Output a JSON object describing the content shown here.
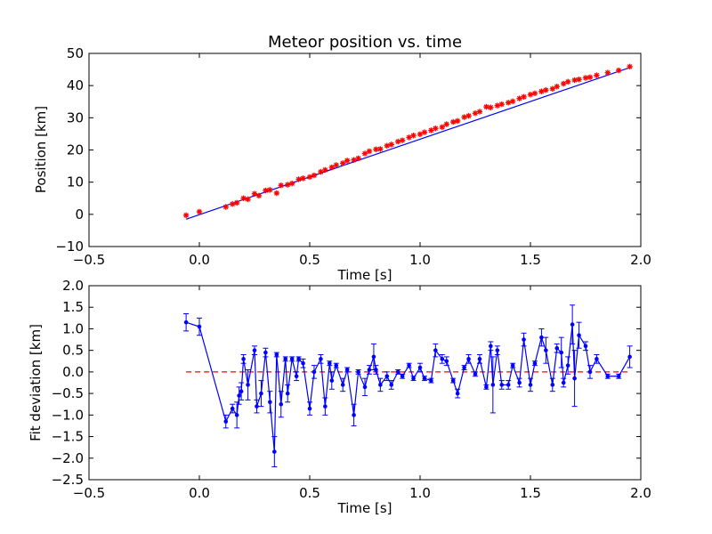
{
  "figure": {
    "background": "#ffffff"
  },
  "chart_data": [
    {
      "type": "scatter",
      "title": "Meteor position vs. time",
      "xlabel": "Time [s]",
      "ylabel": "Position [km]",
      "xlim": [
        -0.5,
        2.0
      ],
      "ylim": [
        -10,
        50
      ],
      "xticks": [
        "−0.5",
        "0.0",
        "0.5",
        "1.0",
        "1.5",
        "2.0"
      ],
      "xtick_values": [
        -0.5,
        0.0,
        0.5,
        1.0,
        1.5,
        2.0
      ],
      "yticks": [
        "−10",
        "0",
        "10",
        "20",
        "30",
        "40",
        "50"
      ],
      "ytick_values": [
        -10,
        0,
        10,
        20,
        30,
        40,
        50
      ],
      "grid": false,
      "series": [
        {
          "kind": "points",
          "color": "#ff0000",
          "marker": "star",
          "x": [
            -0.06,
            0.0,
            0.12,
            0.15,
            0.17,
            0.2,
            0.22,
            0.25,
            0.27,
            0.3,
            0.32,
            0.35,
            0.37,
            0.4,
            0.42,
            0.45,
            0.47,
            0.5,
            0.52,
            0.55,
            0.57,
            0.6,
            0.62,
            0.65,
            0.67,
            0.7,
            0.72,
            0.75,
            0.77,
            0.8,
            0.82,
            0.85,
            0.87,
            0.9,
            0.92,
            0.95,
            0.97,
            1.0,
            1.02,
            1.05,
            1.07,
            1.1,
            1.12,
            1.15,
            1.17,
            1.2,
            1.22,
            1.25,
            1.27,
            1.3,
            1.32,
            1.35,
            1.37,
            1.4,
            1.42,
            1.45,
            1.47,
            1.5,
            1.52,
            1.55,
            1.57,
            1.6,
            1.62,
            1.65,
            1.67,
            1.7,
            1.72,
            1.75,
            1.77,
            1.8,
            1.85,
            1.9,
            1.95
          ],
          "y": [
            -0.3,
            0.8,
            2.3,
            3.2,
            3.6,
            5.0,
            4.7,
            6.4,
            5.8,
            7.4,
            7.6,
            6.6,
            9.0,
            9.2,
            9.6,
            10.9,
            11.2,
            11.6,
            12.1,
            13.2,
            13.8,
            14.6,
            15.3,
            15.9,
            16.7,
            16.9,
            17.4,
            18.9,
            19.6,
            20.2,
            20.3,
            21.3,
            21.7,
            22.6,
            23.0,
            23.9,
            24.5,
            24.9,
            25.5,
            26.1,
            26.7,
            27.1,
            28.0,
            28.7,
            29.0,
            30.2,
            30.6,
            31.4,
            31.9,
            33.4,
            33.2,
            33.8,
            34.2,
            34.7,
            35.1,
            36.0,
            36.5,
            37.2,
            37.6,
            38.2,
            38.6,
            39.0,
            39.7,
            40.6,
            41.2,
            41.7,
            41.9,
            42.4,
            42.6,
            43.2,
            44.0,
            44.7,
            45.9
          ]
        },
        {
          "kind": "line",
          "color": "#0000ff",
          "x": [
            -0.06,
            1.95
          ],
          "y": [
            -1.5,
            45.6
          ]
        }
      ]
    },
    {
      "type": "line",
      "title": "",
      "xlabel": "Time [s]",
      "ylabel": "Fit deviation [km]",
      "xlim": [
        -0.5,
        2.0
      ],
      "ylim": [
        -2.5,
        2.0
      ],
      "xticks": [
        "−0.5",
        "0.0",
        "0.5",
        "1.0",
        "1.5",
        "2.0"
      ],
      "xtick_values": [
        -0.5,
        0.0,
        0.5,
        1.0,
        1.5,
        2.0
      ],
      "yticks": [
        "−2.5",
        "−2.0",
        "−1.5",
        "−1.0",
        "−0.5",
        "0.0",
        "0.5",
        "1.0",
        "1.5",
        "2.0"
      ],
      "ytick_values": [
        -2.5,
        -2.0,
        -1.5,
        -1.0,
        -0.5,
        0.0,
        0.5,
        1.0,
        1.5,
        2.0
      ],
      "grid": false,
      "reference_line": {
        "y": 0,
        "x": [
          -0.06,
          1.95
        ],
        "color": "#ff0000",
        "style": "dashed"
      },
      "series": [
        {
          "color": "#0000ff",
          "marker": "dot",
          "errorbars": true,
          "x": [
            -0.06,
            0.0,
            0.12,
            0.15,
            0.17,
            0.18,
            0.19,
            0.2,
            0.22,
            0.25,
            0.26,
            0.28,
            0.3,
            0.32,
            0.34,
            0.35,
            0.37,
            0.39,
            0.4,
            0.42,
            0.44,
            0.45,
            0.47,
            0.5,
            0.52,
            0.55,
            0.57,
            0.59,
            0.6,
            0.62,
            0.65,
            0.67,
            0.7,
            0.72,
            0.75,
            0.77,
            0.79,
            0.8,
            0.82,
            0.85,
            0.87,
            0.9,
            0.92,
            0.95,
            0.97,
            1.0,
            1.02,
            1.05,
            1.07,
            1.1,
            1.12,
            1.15,
            1.17,
            1.2,
            1.22,
            1.25,
            1.27,
            1.3,
            1.32,
            1.33,
            1.35,
            1.37,
            1.4,
            1.42,
            1.45,
            1.47,
            1.5,
            1.52,
            1.55,
            1.57,
            1.6,
            1.62,
            1.64,
            1.65,
            1.67,
            1.69,
            1.7,
            1.72,
            1.75,
            1.77,
            1.8,
            1.85,
            1.9,
            1.95
          ],
          "y": [
            1.15,
            1.05,
            -1.15,
            -0.85,
            -1.0,
            -0.55,
            -0.45,
            0.3,
            -0.3,
            0.5,
            -0.8,
            -0.5,
            0.45,
            -0.7,
            -1.85,
            0.4,
            -0.75,
            0.3,
            -0.5,
            0.3,
            -0.1,
            0.3,
            0.2,
            -0.85,
            0.0,
            0.3,
            -0.8,
            0.2,
            -0.2,
            0.15,
            -0.3,
            0.05,
            -1.0,
            0.0,
            -0.35,
            0.05,
            0.35,
            0.05,
            -0.3,
            -0.1,
            -0.3,
            0.0,
            -0.1,
            0.15,
            -0.15,
            0.1,
            -0.15,
            -0.2,
            0.5,
            0.3,
            0.25,
            -0.2,
            -0.5,
            0.1,
            0.3,
            -0.05,
            0.3,
            -0.35,
            0.6,
            -0.3,
            0.5,
            -0.3,
            -0.3,
            0.15,
            -0.25,
            0.75,
            -0.3,
            0.2,
            0.8,
            0.5,
            -0.3,
            0.55,
            0.45,
            -0.25,
            0.15,
            1.1,
            -0.15,
            0.85,
            0.6,
            0.0,
            0.3,
            -0.1,
            -0.1,
            0.35
          ],
          "err": [
            0.2,
            0.2,
            0.15,
            0.1,
            0.3,
            0.2,
            0.2,
            0.1,
            0.35,
            0.1,
            0.15,
            0.3,
            0.1,
            0.25,
            0.35,
            0.05,
            0.3,
            0.05,
            0.2,
            0.05,
            0.1,
            0.05,
            0.1,
            0.15,
            0.15,
            0.1,
            0.2,
            0.05,
            0.2,
            0.05,
            0.15,
            0.05,
            0.25,
            0.05,
            0.2,
            0.1,
            0.3,
            0.1,
            0.15,
            0.1,
            0.1,
            0.05,
            0.05,
            0.05,
            0.05,
            0.1,
            0.05,
            0.05,
            0.15,
            0.1,
            0.1,
            0.05,
            0.1,
            0.05,
            0.1,
            0.05,
            0.1,
            0.05,
            0.1,
            0.65,
            0.1,
            0.1,
            0.1,
            0.05,
            0.1,
            0.15,
            0.15,
            0.05,
            0.2,
            0.3,
            0.15,
            0.1,
            0.35,
            0.1,
            0.2,
            0.45,
            0.65,
            0.3,
            0.1,
            0.15,
            0.1,
            0.05,
            0.05,
            0.25
          ]
        }
      ]
    }
  ]
}
